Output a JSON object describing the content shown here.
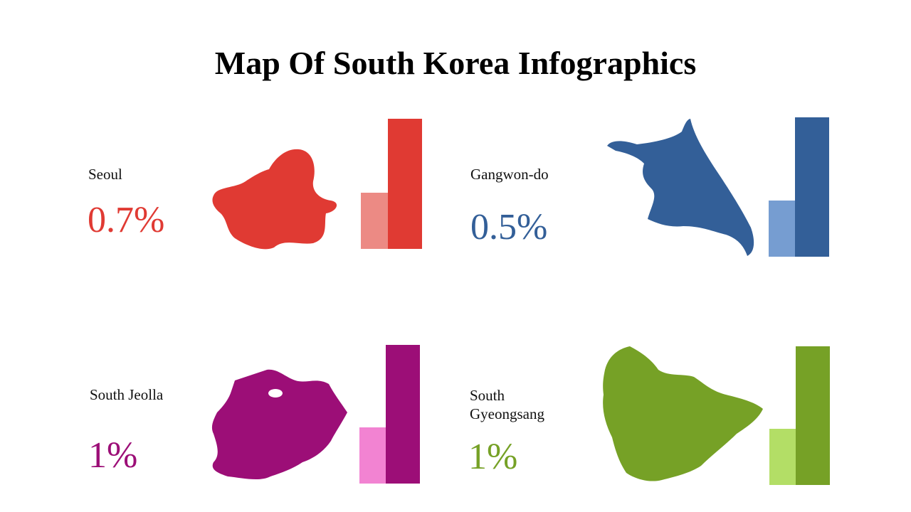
{
  "title": "Map Of South Korea Infographics",
  "regions": [
    {
      "name": "Seoul",
      "value": "0.7%",
      "color": "#e03a33",
      "light_color": "#ec8a84"
    },
    {
      "name": "Gangwon-do",
      "value": "0.5%",
      "color": "#335f98",
      "light_color": "#769dd1"
    },
    {
      "name": "South Jeolla",
      "value": "1%",
      "color": "#9c0e77",
      "light_color": "#f283d2"
    },
    {
      "name": "South Gyeongsang",
      "value": "1%",
      "color": "#76a126",
      "light_color": "#b3de66"
    }
  ]
}
